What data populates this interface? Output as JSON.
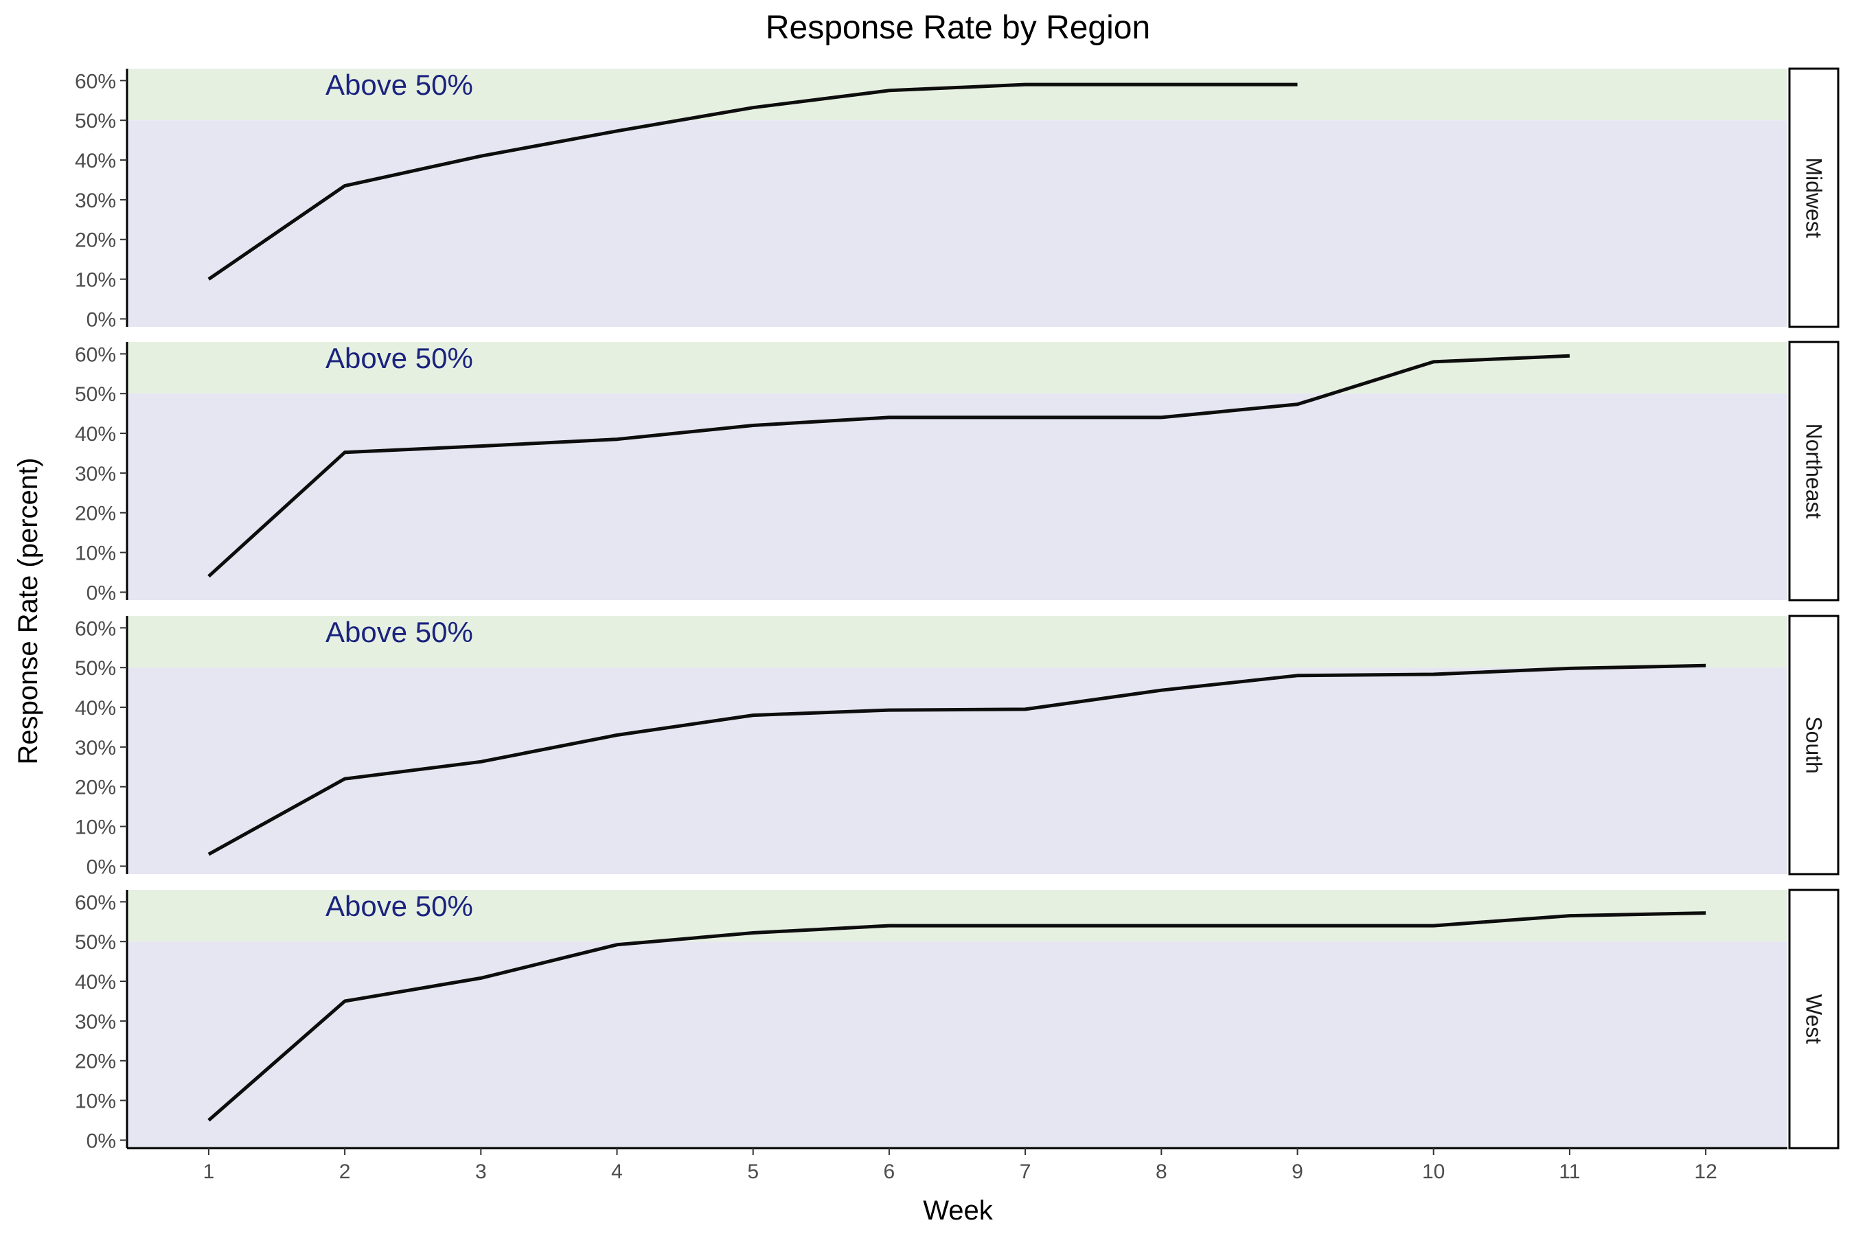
{
  "chart_data": {
    "type": "line",
    "title": "Response Rate by Region",
    "xlabel": "Week",
    "ylabel": "Response Rate (percent)",
    "x_ticks": [
      1,
      2,
      3,
      4,
      5,
      6,
      7,
      8,
      9,
      10,
      11,
      12
    ],
    "xlim": [
      0.4,
      12.6
    ],
    "ylim": [
      -2,
      63
    ],
    "y_ticks": [
      0,
      10,
      20,
      30,
      40,
      50,
      60
    ],
    "y_tick_labels": [
      "0%",
      "10%",
      "20%",
      "30%",
      "40%",
      "50%",
      "60%"
    ],
    "threshold": 50,
    "annotation": "Above 50%",
    "annotation_x": 2.4,
    "annotation_y": 59,
    "colors": {
      "above_band": "#e6f0e1",
      "below_band": "#e6e6f2",
      "line": "#0d0d0d",
      "annotation": "#1a237e"
    },
    "grid": false,
    "panels": [
      {
        "name": "Midwest",
        "x": [
          1,
          2,
          3,
          4,
          5,
          6,
          7,
          8,
          9
        ],
        "values": [
          10,
          33.5,
          41,
          47.3,
          53.2,
          57.5,
          59,
          59,
          59
        ]
      },
      {
        "name": "Northeast",
        "x": [
          1,
          2,
          3,
          4,
          5,
          6,
          7,
          8,
          9,
          10,
          11
        ],
        "values": [
          4,
          35.2,
          36.8,
          38.5,
          42,
          44,
          44,
          44,
          47.3,
          58,
          59.5
        ]
      },
      {
        "name": "South",
        "x": [
          1,
          2,
          3,
          4,
          5,
          6,
          7,
          8,
          9,
          10,
          11,
          12
        ],
        "values": [
          3,
          22,
          26.3,
          33,
          38,
          39.3,
          39.5,
          44.3,
          48,
          48.3,
          49.8,
          50.5
        ]
      },
      {
        "name": "West",
        "x": [
          1,
          2,
          3,
          4,
          5,
          6,
          7,
          8,
          9,
          10,
          11,
          12
        ],
        "values": [
          5,
          35,
          40.8,
          49.2,
          52.2,
          54,
          54,
          54,
          54,
          54,
          56.5,
          57.2
        ]
      }
    ]
  }
}
